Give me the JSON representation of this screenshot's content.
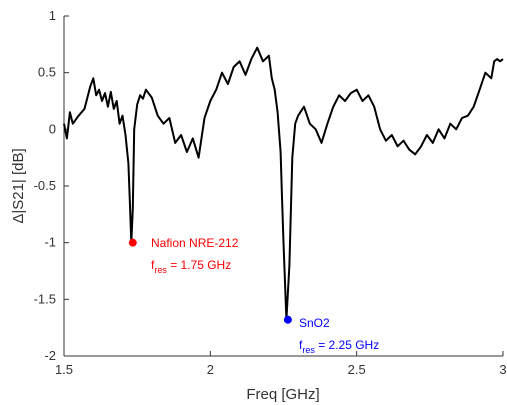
{
  "chart_data": {
    "type": "line",
    "xlabel": "Freq [GHz]",
    "ylabel": "Δ|S21| [dB]",
    "xlim": [
      1.5,
      3
    ],
    "ylim": [
      -2,
      1
    ],
    "xticks": [
      "1.5",
      "2",
      "2.5",
      "3"
    ],
    "yticks": [
      "1",
      "0.5",
      "0",
      "-0.5",
      "-1",
      "-1.5",
      "-2"
    ],
    "grid": false,
    "series": [
      {
        "color": "#000000",
        "x": [
          1.5,
          1.51,
          1.52,
          1.53,
          1.55,
          1.57,
          1.59,
          1.6,
          1.61,
          1.62,
          1.63,
          1.64,
          1.65,
          1.66,
          1.67,
          1.68,
          1.69,
          1.7,
          1.71,
          1.72,
          1.725,
          1.73,
          1.735,
          1.74,
          1.75,
          1.76,
          1.77,
          1.78,
          1.8,
          1.82,
          1.84,
          1.86,
          1.88,
          1.9,
          1.92,
          1.94,
          1.96,
          1.98,
          2.0,
          2.02,
          2.04,
          2.06,
          2.08,
          2.1,
          2.12,
          2.14,
          2.16,
          2.18,
          2.2,
          2.21,
          2.22,
          2.23,
          2.24,
          2.245,
          2.25,
          2.26,
          2.27,
          2.28,
          2.29,
          2.3,
          2.32,
          2.34,
          2.36,
          2.38,
          2.4,
          2.42,
          2.44,
          2.46,
          2.48,
          2.5,
          2.52,
          2.54,
          2.56,
          2.58,
          2.6,
          2.62,
          2.64,
          2.66,
          2.68,
          2.7,
          2.72,
          2.74,
          2.76,
          2.78,
          2.8,
          2.82,
          2.84,
          2.86,
          2.88,
          2.9,
          2.92,
          2.94,
          2.96,
          2.97,
          2.98,
          2.99,
          3.0
        ],
        "y": [
          0.05,
          -0.08,
          0.15,
          0.05,
          0.12,
          0.18,
          0.38,
          0.45,
          0.3,
          0.35,
          0.25,
          0.32,
          0.2,
          0.33,
          0.18,
          0.25,
          0.05,
          0.12,
          -0.05,
          -0.3,
          -0.65,
          -1.0,
          -0.7,
          0.0,
          0.22,
          0.3,
          0.27,
          0.35,
          0.28,
          0.12,
          0.05,
          0.1,
          -0.12,
          -0.05,
          -0.2,
          -0.08,
          -0.25,
          0.1,
          0.25,
          0.35,
          0.5,
          0.4,
          0.55,
          0.6,
          0.48,
          0.62,
          0.72,
          0.6,
          0.65,
          0.45,
          0.35,
          0.15,
          -0.2,
          -0.6,
          -1.0,
          -1.68,
          -1.2,
          -0.25,
          0.05,
          0.12,
          0.2,
          0.05,
          0.0,
          -0.12,
          0.05,
          0.2,
          0.3,
          0.25,
          0.32,
          0.35,
          0.25,
          0.3,
          0.2,
          0.0,
          -0.1,
          -0.05,
          -0.15,
          -0.1,
          -0.18,
          -0.22,
          -0.15,
          -0.05,
          -0.12,
          0.0,
          -0.08,
          0.05,
          0.0,
          0.1,
          0.12,
          0.2,
          0.35,
          0.5,
          0.45,
          0.6,
          0.62,
          0.6,
          0.62
        ]
      }
    ],
    "markers": [
      {
        "x": 1.735,
        "y": -1.0,
        "color": "#ff0000"
      },
      {
        "x": 2.265,
        "y": -1.68,
        "color": "#0000ff"
      }
    ],
    "annotations": [
      {
        "line1": "Nafion NRE-212",
        "f_main": "f",
        "f_sub": "res",
        "f_value": " = 1.75 GHz",
        "color": "#ff0000"
      },
      {
        "line1": "SnO2",
        "f_main": "f",
        "f_sub": "res",
        "f_value": " = 2.25 GHz",
        "color": "#0000ff"
      }
    ]
  }
}
